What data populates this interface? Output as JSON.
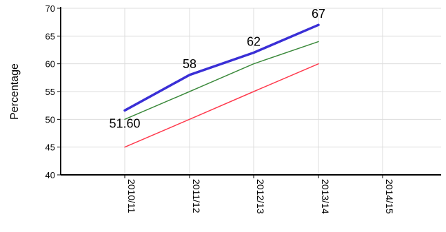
{
  "chart_data": {
    "type": "line",
    "title": "",
    "xlabel": "",
    "ylabel": "Percentage",
    "categories": [
      "2010/11",
      "2011/12",
      "2012/13",
      "2013/14",
      "2014/15"
    ],
    "ylim": [
      40,
      70
    ],
    "yticks": [
      40,
      45,
      50,
      55,
      60,
      65,
      70
    ],
    "grid": true,
    "legend": "none",
    "series": [
      {
        "values": [
          51.6,
          58,
          62,
          67,
          null
        ],
        "color": "#3a2fd6",
        "data_labels": [
          "51.60",
          "58",
          "62",
          "67",
          ""
        ]
      },
      {
        "values": [
          50,
          55,
          60,
          64,
          null
        ],
        "color": "#3c8a3c",
        "data_labels": []
      },
      {
        "values": [
          45,
          50,
          55,
          60,
          null
        ],
        "color": "#ff3b4e",
        "data_labels": []
      }
    ]
  }
}
